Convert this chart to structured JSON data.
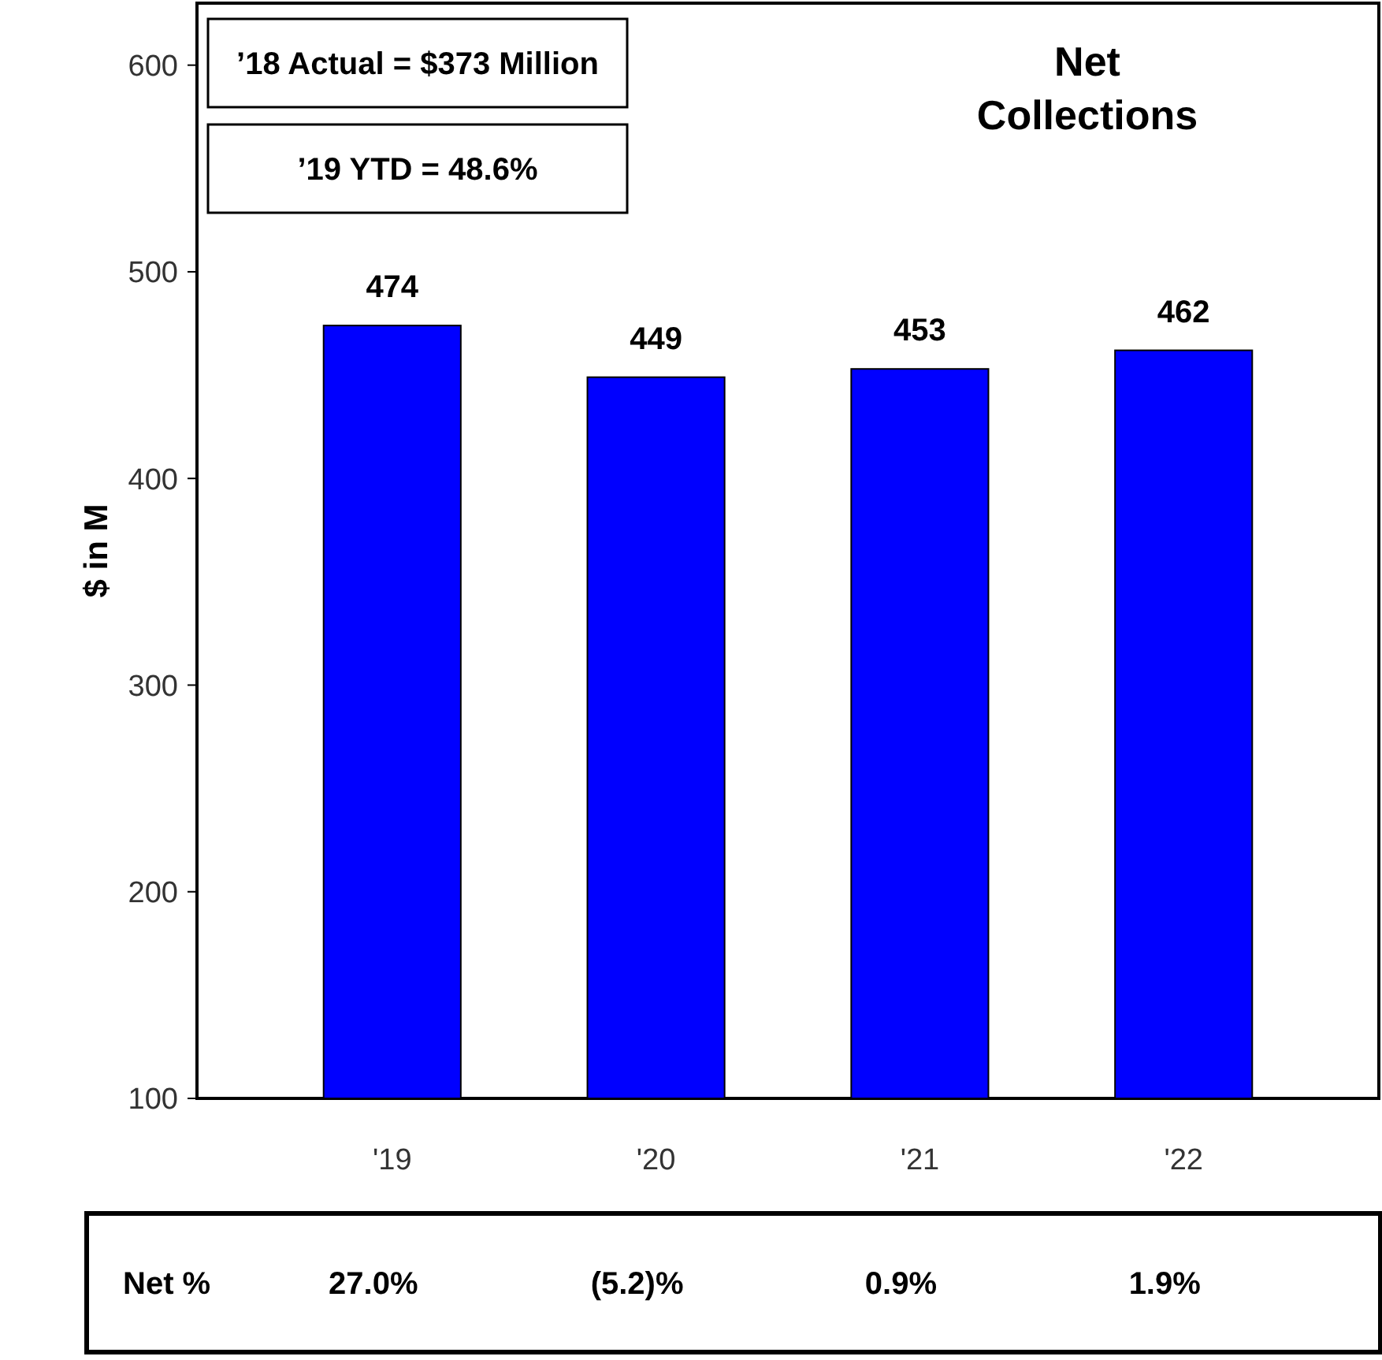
{
  "chart_data": {
    "type": "bar",
    "title": "Net Collections",
    "ylabel": "$ in M",
    "categories": [
      "'19",
      "'20",
      "'21",
      "'22"
    ],
    "values": [
      474,
      449,
      453,
      462
    ],
    "color": "#0000ff",
    "ylim": [
      100,
      630
    ],
    "yticks": [
      100,
      200,
      300,
      400,
      500,
      600
    ],
    "grid": false,
    "data_labels": true,
    "annotations": [
      "’18 Actual = $373 Million",
      "’19 YTD = 48.6%",
      "Net %",
      "27.0%",
      "(5.2)%",
      "0.9%",
      "1.9%"
    ]
  }
}
